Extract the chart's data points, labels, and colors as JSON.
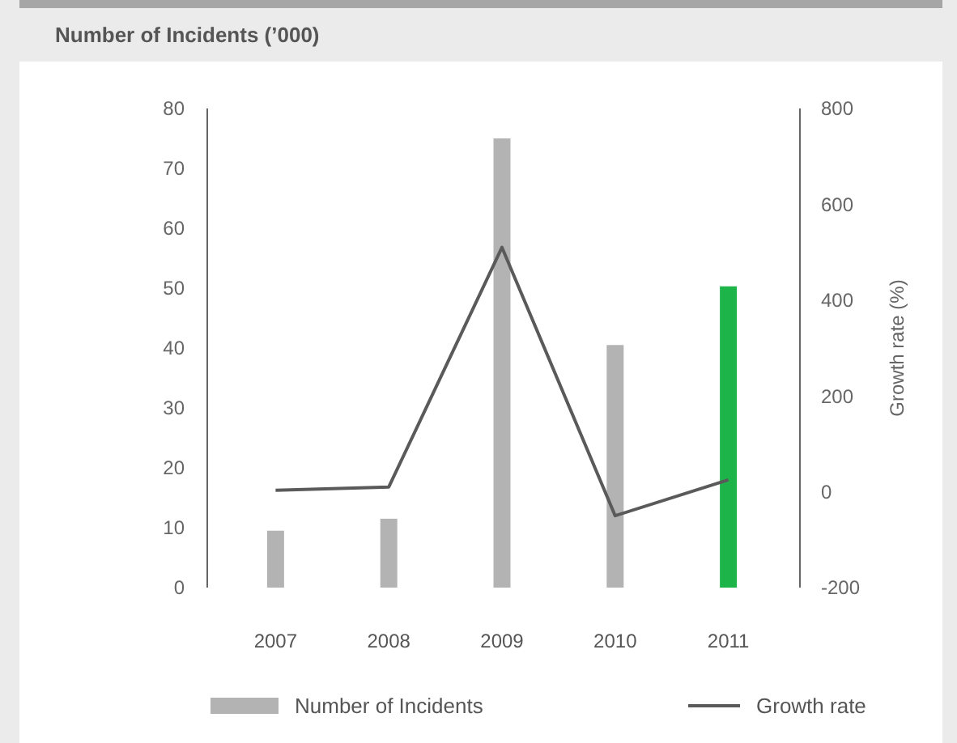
{
  "chart_data": {
    "type": "bar",
    "title": "Number of Incidents (’000)",
    "y2label": "Growth rate (%)",
    "categories": [
      "2007",
      "2008",
      "2009",
      "2010",
      "2011"
    ],
    "series": [
      {
        "name": "Number of Incidents",
        "color": "#b3b3b3",
        "colors": [
          "#b3b3b3",
          "#b3b3b3",
          "#b3b3b3",
          "#b3b3b3",
          "#1db54a"
        ],
        "values": [
          9.5,
          11.5,
          75,
          40.5,
          50.3
        ]
      },
      {
        "name": "Growth rate",
        "type": "line",
        "axis": "y2",
        "color": "#5a5a5a",
        "values": [
          3,
          10,
          510,
          -50,
          25
        ]
      }
    ],
    "ylim": [
      0,
      80
    ],
    "yticks": [
      0,
      10,
      20,
      30,
      40,
      50,
      60,
      70,
      80
    ],
    "y2lim": [
      -200,
      800
    ],
    "y2ticks": [
      -200,
      0,
      200,
      400,
      600,
      800
    ],
    "grid": false,
    "legend": "bottom",
    "marker": "none",
    "line_style": "solid"
  }
}
